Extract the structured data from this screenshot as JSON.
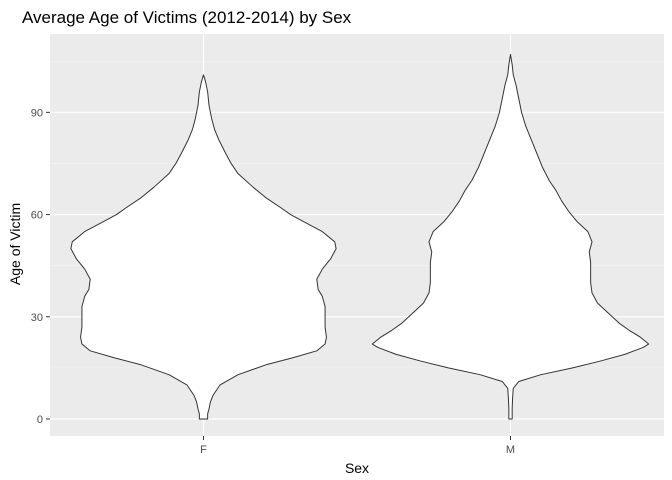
{
  "chart_data": {
    "type": "violin",
    "title": "Average Age of Victims (2012-2014) by Sex",
    "xlabel": "Sex",
    "ylabel": "Age of Victim",
    "categories": [
      "F",
      "M"
    ],
    "ylim": [
      -5,
      113
    ],
    "yticks": [
      0,
      30,
      60,
      90
    ],
    "grid": true,
    "legend": "none",
    "colors": {
      "panel": "#ebebeb",
      "grid_major": "#ffffff",
      "grid_minor": "#f5f5f5",
      "violin_fill": "#ffffff",
      "violin_stroke": "#333333",
      "tick_text": "#4d4d4d"
    },
    "series": [
      {
        "category": "F",
        "profile": [
          [
            0,
            0.03
          ],
          [
            1.5,
            0.03
          ],
          [
            3,
            0.04
          ],
          [
            5,
            0.05
          ],
          [
            7,
            0.07
          ],
          [
            10,
            0.12
          ],
          [
            13,
            0.25
          ],
          [
            16,
            0.46
          ],
          [
            18,
            0.65
          ],
          [
            20,
            0.82
          ],
          [
            22,
            0.88
          ],
          [
            24,
            0.89
          ],
          [
            27,
            0.88
          ],
          [
            30,
            0.88
          ],
          [
            33,
            0.88
          ],
          [
            36,
            0.86
          ],
          [
            38,
            0.83
          ],
          [
            41,
            0.82
          ],
          [
            44,
            0.86
          ],
          [
            47,
            0.92
          ],
          [
            50,
            0.96
          ],
          [
            52,
            0.95
          ],
          [
            55,
            0.86
          ],
          [
            58,
            0.72
          ],
          [
            60,
            0.63
          ],
          [
            62,
            0.56
          ],
          [
            65,
            0.45
          ],
          [
            68,
            0.36
          ],
          [
            72,
            0.25
          ],
          [
            75,
            0.2
          ],
          [
            78,
            0.16
          ],
          [
            82,
            0.11
          ],
          [
            85,
            0.08
          ],
          [
            88,
            0.06
          ],
          [
            92,
            0.04
          ],
          [
            96,
            0.03
          ],
          [
            99,
            0.015
          ],
          [
            101,
            0.0
          ]
        ]
      },
      {
        "category": "M",
        "profile": [
          [
            0,
            0.012
          ],
          [
            3,
            0.012
          ],
          [
            6,
            0.015
          ],
          [
            9,
            0.02
          ],
          [
            11,
            0.06
          ],
          [
            13,
            0.22
          ],
          [
            15,
            0.45
          ],
          [
            17,
            0.65
          ],
          [
            19,
            0.83
          ],
          [
            21,
            0.96
          ],
          [
            22,
            1.0
          ],
          [
            24,
            0.94
          ],
          [
            26,
            0.86
          ],
          [
            28,
            0.79
          ],
          [
            31,
            0.71
          ],
          [
            34,
            0.63
          ],
          [
            37,
            0.59
          ],
          [
            40,
            0.58
          ],
          [
            43,
            0.58
          ],
          [
            46,
            0.58
          ],
          [
            49,
            0.57
          ],
          [
            52,
            0.59
          ],
          [
            55,
            0.56
          ],
          [
            58,
            0.48
          ],
          [
            61,
            0.42
          ],
          [
            64,
            0.37
          ],
          [
            67,
            0.33
          ],
          [
            70,
            0.28
          ],
          [
            74,
            0.23
          ],
          [
            78,
            0.19
          ],
          [
            82,
            0.15
          ],
          [
            86,
            0.11
          ],
          [
            90,
            0.08
          ],
          [
            94,
            0.06
          ],
          [
            98,
            0.04
          ],
          [
            101,
            0.02
          ],
          [
            104,
            0.012
          ],
          [
            107,
            0.0
          ]
        ]
      }
    ]
  }
}
